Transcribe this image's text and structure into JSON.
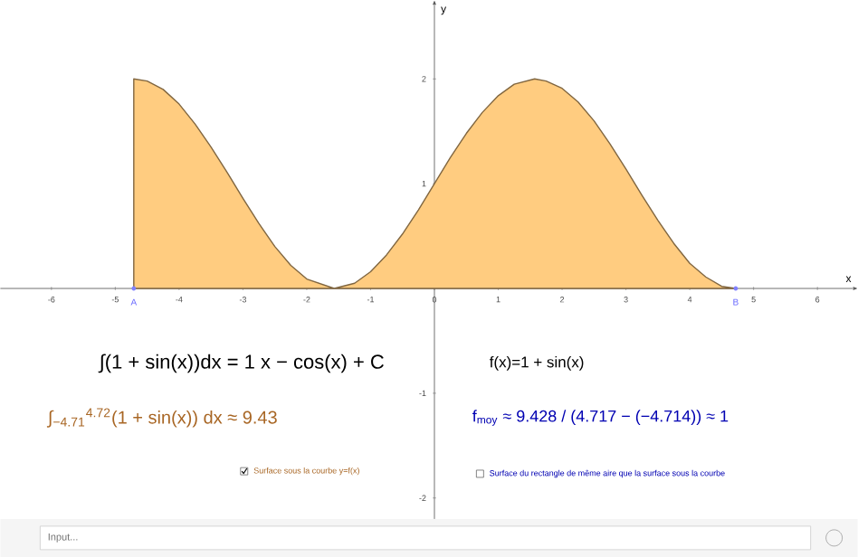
{
  "chart_data": {
    "type": "area",
    "xlabel": "x",
    "ylabel": "y",
    "x": [
      -4.71,
      -4.5,
      -4.25,
      -4,
      -3.75,
      -3.5,
      -3.25,
      -3,
      -2.75,
      -2.5,
      -2.25,
      -2,
      -1.57,
      -1.25,
      -1,
      -0.75,
      -0.5,
      -0.25,
      0,
      0.25,
      0.5,
      0.75,
      1,
      1.25,
      1.57,
      1.75,
      2,
      2.25,
      2.5,
      2.75,
      3,
      3.25,
      3.5,
      3.75,
      4,
      4.25,
      4.5,
      4.72
    ],
    "series": [
      {
        "color": "#ffcc80",
        "values": [
          2.0,
          1.98,
          1.9,
          1.76,
          1.57,
          1.35,
          1.11,
          0.86,
          0.62,
          0.4,
          0.22,
          0.09,
          0.0,
          0.05,
          0.16,
          0.32,
          0.52,
          0.75,
          1.0,
          1.25,
          1.48,
          1.68,
          1.84,
          1.95,
          2.0,
          1.98,
          1.91,
          1.78,
          1.6,
          1.38,
          1.14,
          0.89,
          0.65,
          0.43,
          0.24,
          0.11,
          0.02,
          0.0
        ]
      }
    ],
    "xlim": [
      -6.8,
      6.63
    ],
    "ylim": [
      -2.2,
      2.75
    ],
    "xticks": [
      -6,
      -5,
      -4,
      -3,
      -2,
      -1,
      0,
      1,
      2,
      3,
      4,
      5,
      6
    ],
    "yticks": [
      -2,
      -1,
      1,
      2
    ],
    "annotations": [
      {
        "text": "A",
        "x": -4.71,
        "y": 0
      },
      {
        "text": "B",
        "x": 4.72,
        "y": 0
      },
      "∫(1 + sin(x))dx = 1 x − cos(x) + C",
      "∫$_{−4.71}$$^{4.72}$(1 + sin(x)) dx ≈ 9.43",
      "f(x)=1 + sin(x)",
      "f$_{moy}$ ≈ 9.428 / (4.717 − (−4.714)) ≈ 1",
      "Surface sous la courbe y=f(x)",
      "Surface du rectangle de même aire que la surface sous la courbe",
      "Input..."
    ]
  }
}
